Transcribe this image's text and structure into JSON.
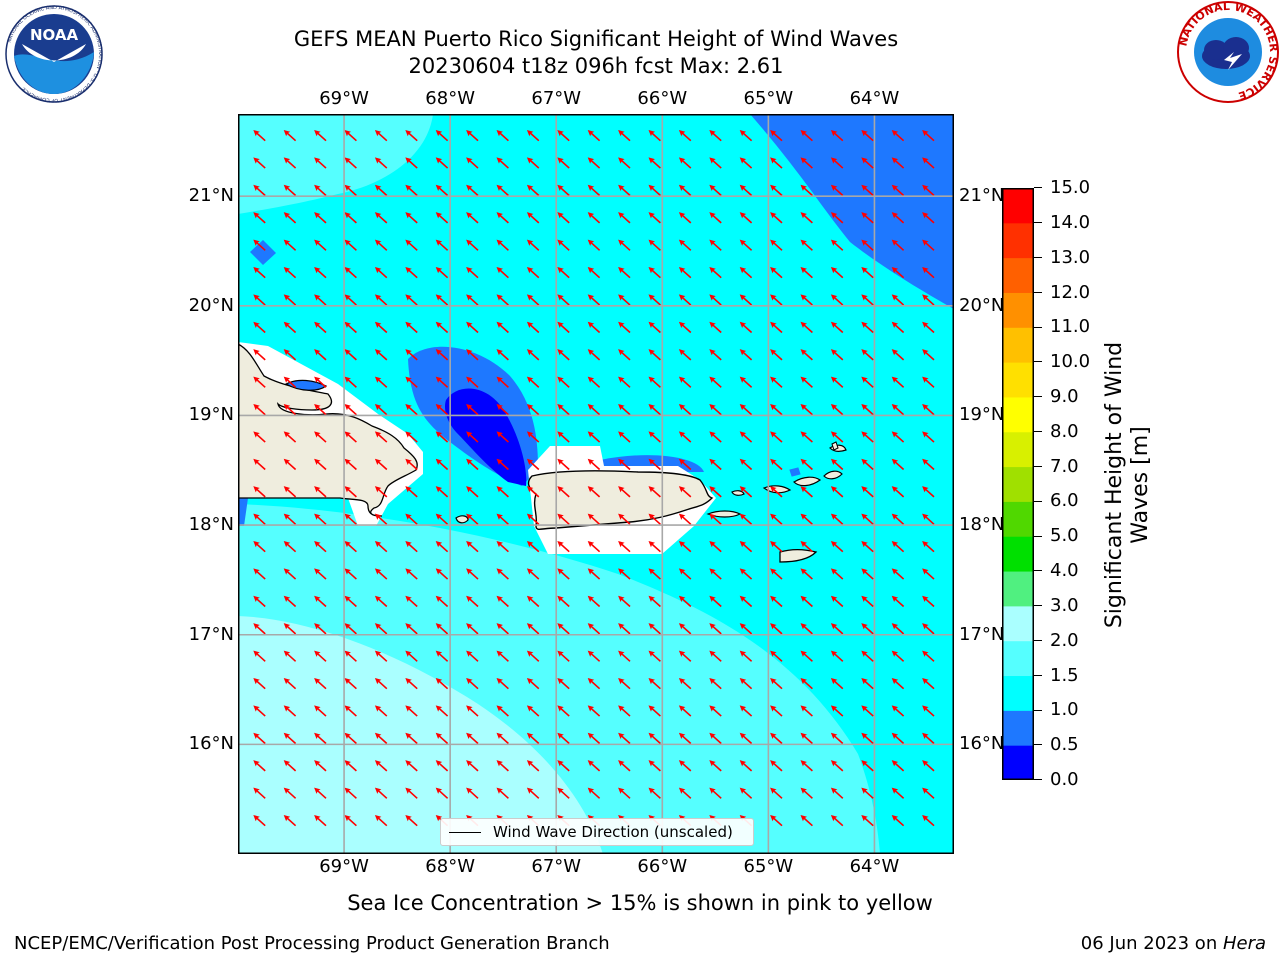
{
  "title": {
    "line1": "GEFS MEAN Puerto Rico Significant Height of Wind Waves",
    "line2": "20230604 t18z 096h fcst   Max: 2.61"
  },
  "logos": {
    "noaa": {
      "text": "NOAA",
      "ring_text": "NATIONAL OCEANIC AND ATMOSPHERIC ADMINISTRATION · U.S. DEPARTMENT OF COMMERCE"
    },
    "nws": {
      "ring_text": "NATIONAL WEATHER SERVICE"
    }
  },
  "map": {
    "lon_range": [
      -70.0,
      -63.25
    ],
    "lat_range": [
      15.0,
      21.75
    ],
    "lon_ticks": [
      -69,
      -68,
      -67,
      -66,
      -65,
      -64
    ],
    "lat_ticks": [
      16,
      17,
      18,
      19,
      20,
      21
    ],
    "lon_tick_labels": [
      "69°W",
      "68°W",
      "67°W",
      "66°W",
      "65°W",
      "64°W"
    ],
    "lat_tick_labels": [
      "16°N",
      "17°N",
      "18°N",
      "19°N",
      "20°N",
      "21°N"
    ],
    "gridlines": true,
    "background_color": "#00ffff",
    "arrow_color": "#ff0000",
    "land_color": "#efedde",
    "legend": {
      "label": "Wind Wave Direction (unscaled)",
      "placement": "lower-center"
    }
  },
  "colorbar": {
    "title": "Significant Height of Wind Waves [m]",
    "levels": [
      0.0,
      0.5,
      1.0,
      1.5,
      2.0,
      3.0,
      4.0,
      5.0,
      6.0,
      7.0,
      8.0,
      9.0,
      10.0,
      11.0,
      12.0,
      13.0,
      14.0,
      15.0
    ],
    "tick_labels": [
      "0.0",
      "0.5",
      "1.0",
      "1.5",
      "2.0",
      "3.0",
      "4.0",
      "5.0",
      "6.0",
      "7.0",
      "8.0",
      "9.0",
      "10.0",
      "11.0",
      "12.0",
      "13.0",
      "14.0",
      "15.0"
    ],
    "colors": [
      "#0000ff",
      "#1e78ff",
      "#00ffff",
      "#55ffff",
      "#aaffff",
      "#50f080",
      "#00e000",
      "#50d800",
      "#a0e000",
      "#d8f000",
      "#ffff00",
      "#ffe000",
      "#ffc000",
      "#ff9000",
      "#ff6000",
      "#ff3000",
      "#ff0000"
    ]
  },
  "sea_ice_note": "Sea Ice Concentration > 15% is shown in pink to yellow",
  "footer": {
    "left": "NCEP/EMC/Verification Post Processing Product Generation Branch",
    "date": "06 Jun 2023 on ",
    "host": "Hera"
  }
}
